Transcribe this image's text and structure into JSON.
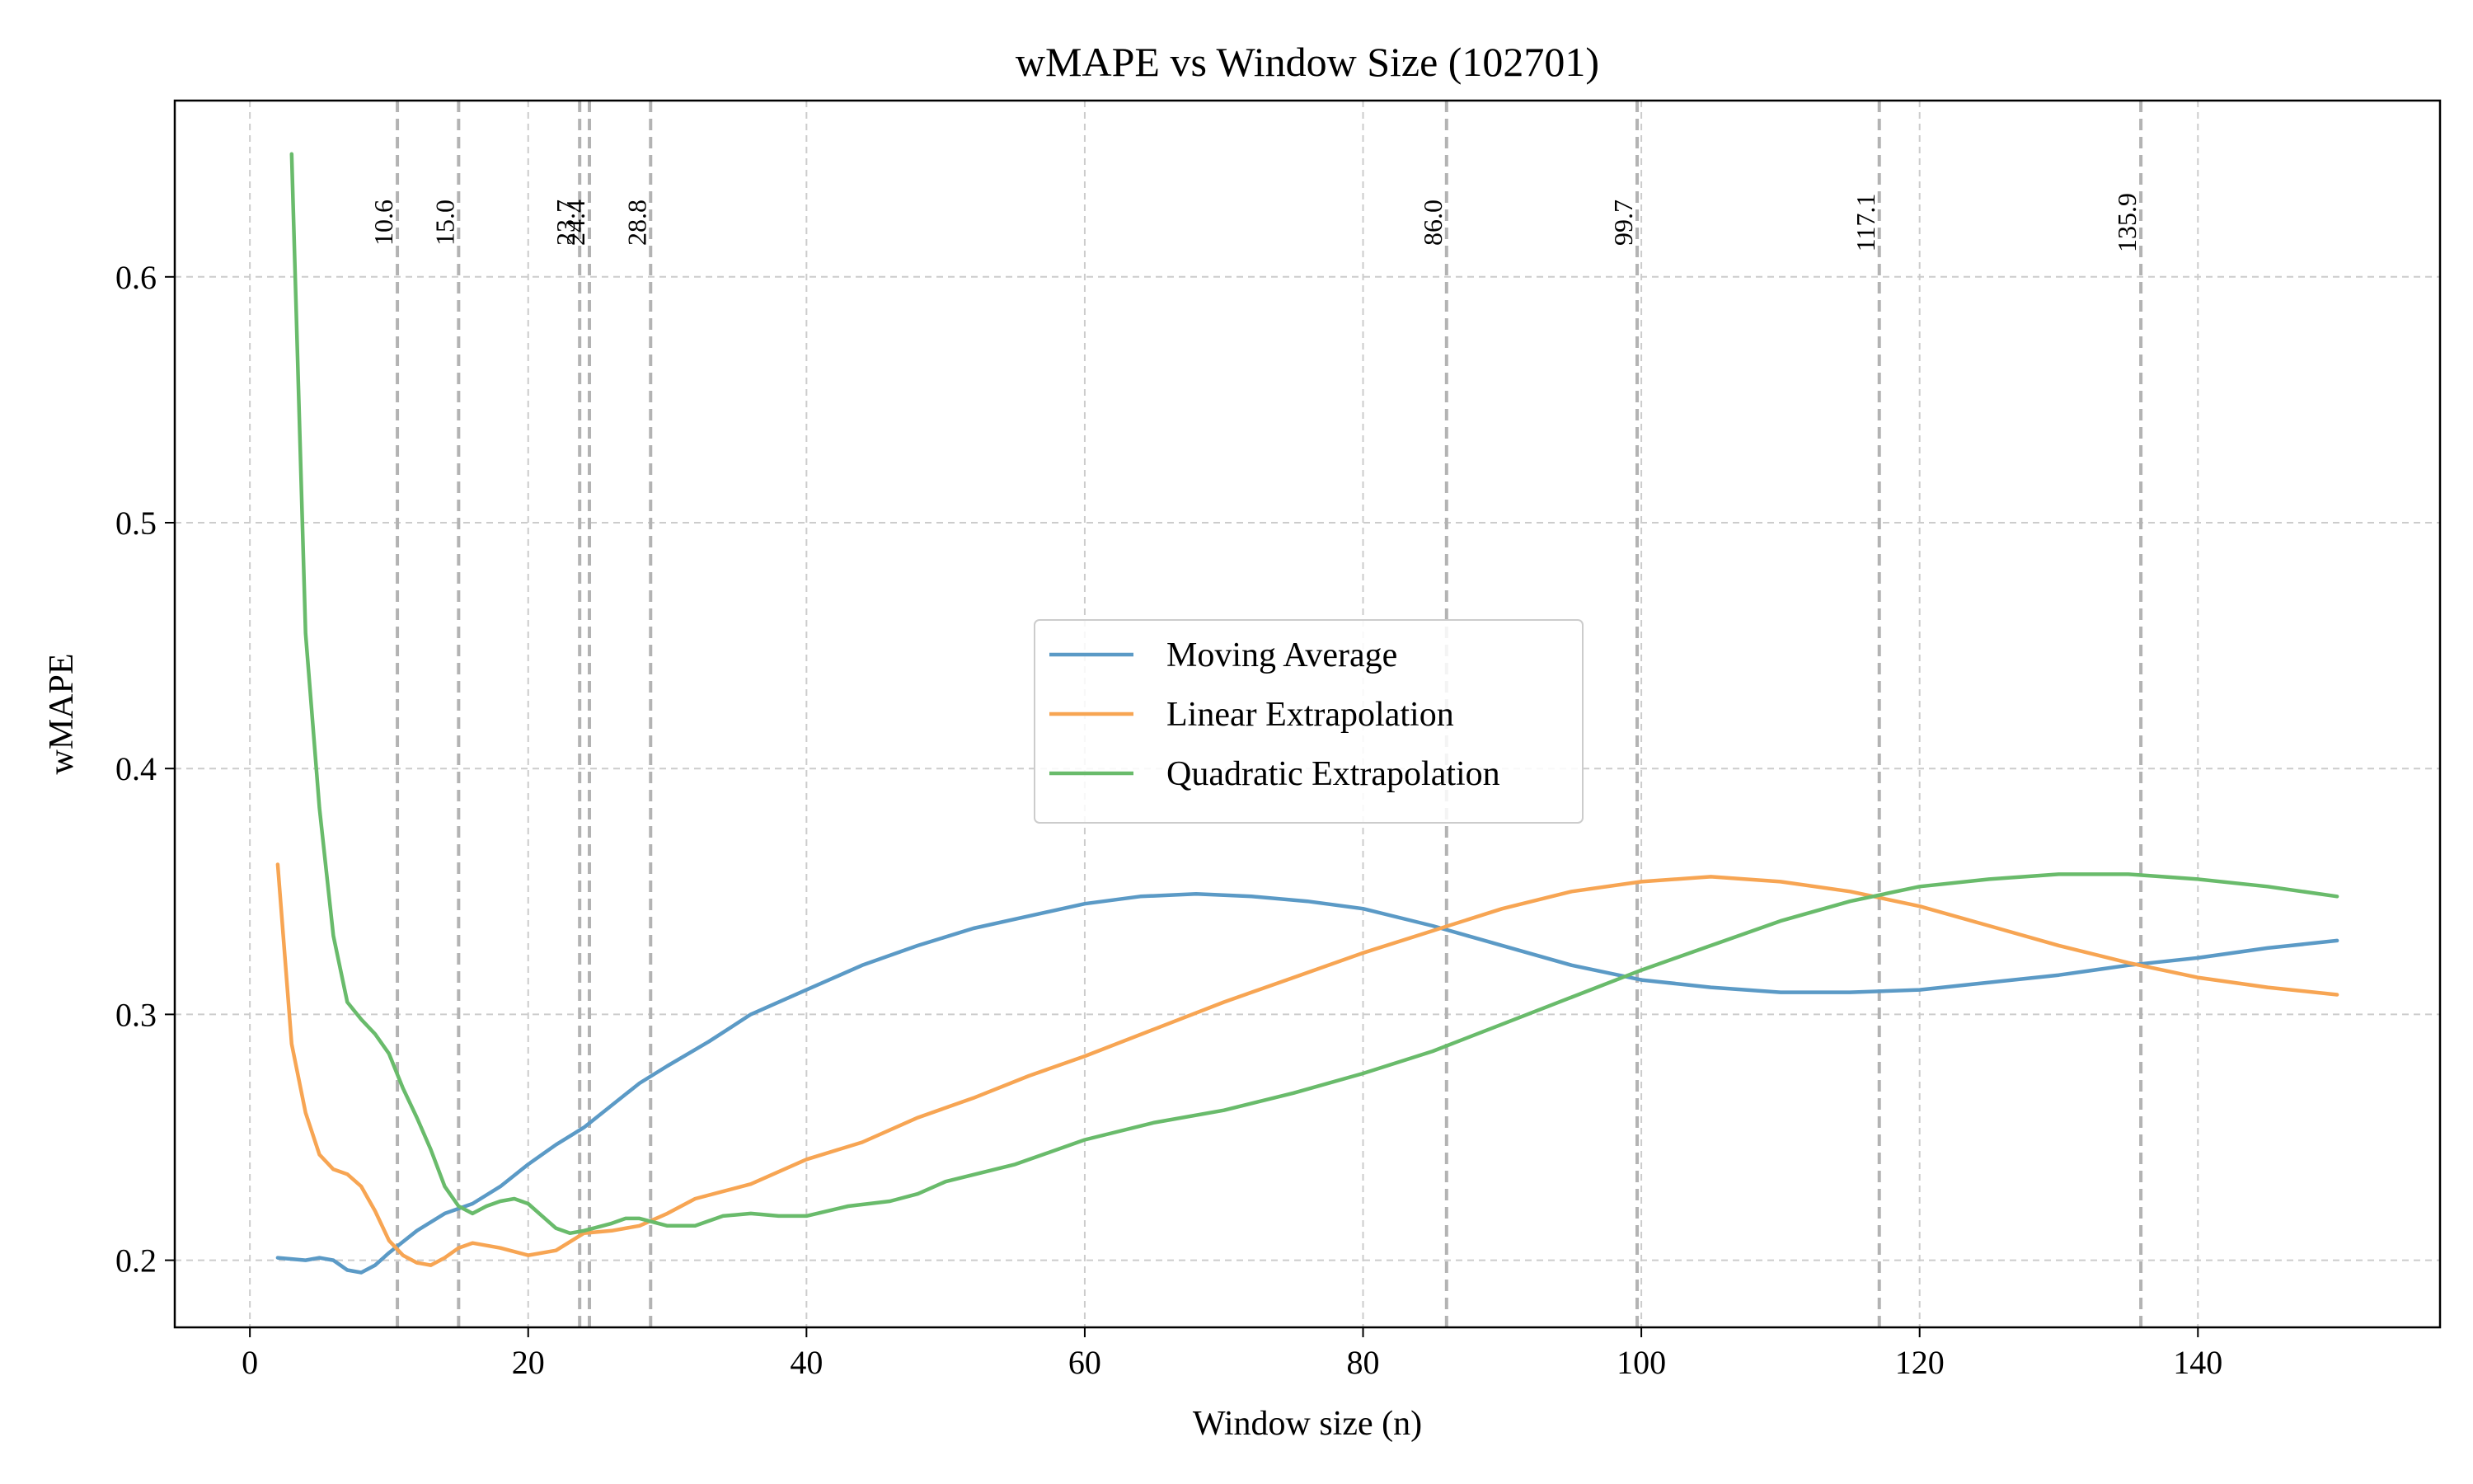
{
  "chart_data": {
    "type": "line",
    "title": "wMAPE vs Window Size (102701)",
    "xlabel": "Window size (n)",
    "ylabel": "wMAPE",
    "xlim": [
      -5.4,
      157.4
    ],
    "ylim": [
      0.1727,
      0.6717
    ],
    "xticks": [
      0,
      20,
      40,
      60,
      80,
      100,
      120,
      140
    ],
    "yticks": [
      0.2,
      0.3,
      0.4,
      0.5,
      0.6
    ],
    "xtick_labels": [
      "0",
      "20",
      "40",
      "60",
      "80",
      "100",
      "120",
      "140"
    ],
    "ytick_labels": [
      "0.2",
      "0.3",
      "0.4",
      "0.5",
      "0.6"
    ],
    "grid": true,
    "legend_position": "center",
    "vlines": [
      {
        "x": 10.6,
        "label": "10.6"
      },
      {
        "x": 15.0,
        "label": "15.0"
      },
      {
        "x": 23.7,
        "label": "23.7"
      },
      {
        "x": 24.4,
        "label": "24.4"
      },
      {
        "x": 28.8,
        "label": "28.8"
      },
      {
        "x": 86.0,
        "label": "86.0"
      },
      {
        "x": 99.7,
        "label": "99.7"
      },
      {
        "x": 117.1,
        "label": "117.1"
      },
      {
        "x": 135.9,
        "label": "135.9"
      }
    ],
    "series": [
      {
        "name": "Moving Average",
        "color": "#5b9ac6",
        "points": [
          [
            2,
            0.201
          ],
          [
            4,
            0.2
          ],
          [
            5,
            0.201
          ],
          [
            6,
            0.2
          ],
          [
            7,
            0.196
          ],
          [
            8,
            0.195
          ],
          [
            9,
            0.198
          ],
          [
            10,
            0.203
          ],
          [
            12,
            0.212
          ],
          [
            14,
            0.219
          ],
          [
            16,
            0.223
          ],
          [
            18,
            0.23
          ],
          [
            20,
            0.239
          ],
          [
            22,
            0.247
          ],
          [
            24,
            0.254
          ],
          [
            26,
            0.263
          ],
          [
            28,
            0.272
          ],
          [
            30,
            0.279
          ],
          [
            33,
            0.289
          ],
          [
            36,
            0.3
          ],
          [
            40,
            0.31
          ],
          [
            44,
            0.32
          ],
          [
            48,
            0.328
          ],
          [
            52,
            0.335
          ],
          [
            56,
            0.34
          ],
          [
            60,
            0.345
          ],
          [
            64,
            0.348
          ],
          [
            68,
            0.349
          ],
          [
            72,
            0.348
          ],
          [
            76,
            0.346
          ],
          [
            80,
            0.343
          ],
          [
            85,
            0.336
          ],
          [
            90,
            0.328
          ],
          [
            95,
            0.32
          ],
          [
            100,
            0.314
          ],
          [
            105,
            0.311
          ],
          [
            110,
            0.309
          ],
          [
            115,
            0.309
          ],
          [
            120,
            0.31
          ],
          [
            125,
            0.313
          ],
          [
            130,
            0.316
          ],
          [
            135,
            0.32
          ],
          [
            140,
            0.323
          ],
          [
            145,
            0.327
          ],
          [
            150,
            0.33
          ]
        ]
      },
      {
        "name": "Linear Extrapolation",
        "color": "#f7a553",
        "points": [
          [
            2,
            0.361
          ],
          [
            3,
            0.288
          ],
          [
            4,
            0.26
          ],
          [
            5,
            0.243
          ],
          [
            6,
            0.237
          ],
          [
            7,
            0.235
          ],
          [
            8,
            0.23
          ],
          [
            9,
            0.22
          ],
          [
            10,
            0.208
          ],
          [
            11,
            0.202
          ],
          [
            12,
            0.199
          ],
          [
            13,
            0.198
          ],
          [
            14,
            0.201
          ],
          [
            15,
            0.205
          ],
          [
            16,
            0.207
          ],
          [
            18,
            0.205
          ],
          [
            20,
            0.202
          ],
          [
            22,
            0.204
          ],
          [
            24,
            0.211
          ],
          [
            26,
            0.212
          ],
          [
            28,
            0.214
          ],
          [
            30,
            0.219
          ],
          [
            32,
            0.225
          ],
          [
            34,
            0.228
          ],
          [
            36,
            0.231
          ],
          [
            40,
            0.241
          ],
          [
            44,
            0.248
          ],
          [
            48,
            0.258
          ],
          [
            52,
            0.266
          ],
          [
            56,
            0.275
          ],
          [
            60,
            0.283
          ],
          [
            65,
            0.294
          ],
          [
            70,
            0.305
          ],
          [
            75,
            0.315
          ],
          [
            80,
            0.325
          ],
          [
            85,
            0.334
          ],
          [
            90,
            0.343
          ],
          [
            95,
            0.35
          ],
          [
            100,
            0.354
          ],
          [
            105,
            0.356
          ],
          [
            110,
            0.354
          ],
          [
            115,
            0.35
          ],
          [
            120,
            0.344
          ],
          [
            125,
            0.336
          ],
          [
            130,
            0.328
          ],
          [
            135,
            0.321
          ],
          [
            140,
            0.315
          ],
          [
            145,
            0.311
          ],
          [
            150,
            0.308
          ]
        ]
      },
      {
        "name": "Quadratic Extrapolation",
        "color": "#69bb6b",
        "points": [
          [
            3,
            0.65
          ],
          [
            4,
            0.455
          ],
          [
            5,
            0.384
          ],
          [
            6,
            0.332
          ],
          [
            7,
            0.305
          ],
          [
            8,
            0.298
          ],
          [
            9,
            0.292
          ],
          [
            10,
            0.284
          ],
          [
            11,
            0.27
          ],
          [
            12,
            0.258
          ],
          [
            13,
            0.245
          ],
          [
            14,
            0.23
          ],
          [
            15,
            0.222
          ],
          [
            16,
            0.219
          ],
          [
            17,
            0.222
          ],
          [
            18,
            0.224
          ],
          [
            19,
            0.225
          ],
          [
            20,
            0.223
          ],
          [
            21,
            0.218
          ],
          [
            22,
            0.213
          ],
          [
            23,
            0.211
          ],
          [
            24,
            0.212
          ],
          [
            26,
            0.215
          ],
          [
            27,
            0.217
          ],
          [
            28,
            0.217
          ],
          [
            30,
            0.214
          ],
          [
            32,
            0.214
          ],
          [
            34,
            0.218
          ],
          [
            36,
            0.219
          ],
          [
            38,
            0.218
          ],
          [
            40,
            0.218
          ],
          [
            43,
            0.222
          ],
          [
            46,
            0.224
          ],
          [
            48,
            0.227
          ],
          [
            50,
            0.232
          ],
          [
            55,
            0.239
          ],
          [
            60,
            0.249
          ],
          [
            65,
            0.256
          ],
          [
            70,
            0.261
          ],
          [
            75,
            0.268
          ],
          [
            80,
            0.276
          ],
          [
            85,
            0.285
          ],
          [
            90,
            0.296
          ],
          [
            95,
            0.307
          ],
          [
            100,
            0.318
          ],
          [
            105,
            0.328
          ],
          [
            110,
            0.338
          ],
          [
            115,
            0.346
          ],
          [
            120,
            0.352
          ],
          [
            125,
            0.355
          ],
          [
            130,
            0.357
          ],
          [
            135,
            0.357
          ],
          [
            140,
            0.355
          ],
          [
            145,
            0.352
          ],
          [
            150,
            0.348
          ]
        ]
      }
    ]
  }
}
